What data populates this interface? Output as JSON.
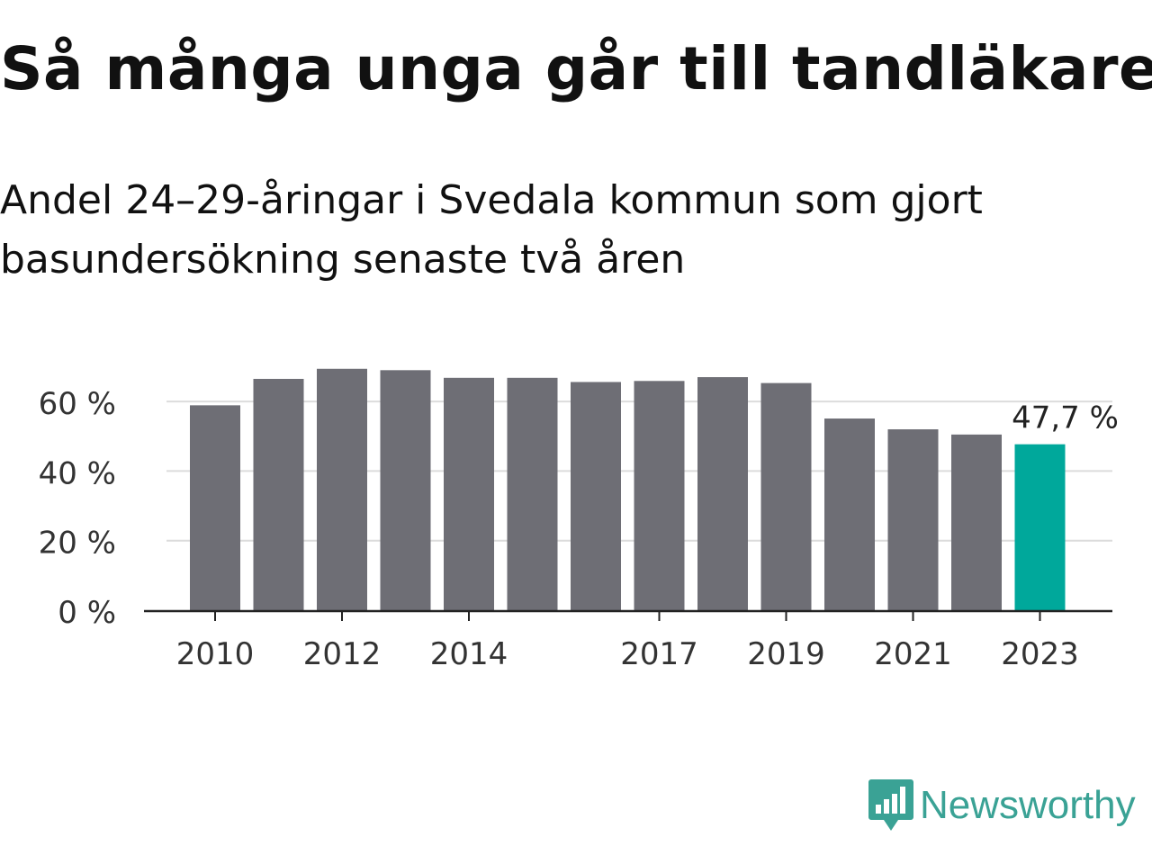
{
  "title": "Så många unga går till tandläkaren",
  "subtitle": "Andel 24–29-åringar i Svedala kommun som gjort basundersökning senaste två åren",
  "chart_data": {
    "type": "bar",
    "categories": [
      "2010",
      "2011",
      "2012",
      "2013",
      "2014",
      "2015",
      "2016",
      "2017",
      "2018",
      "2019",
      "2020",
      "2021",
      "2022",
      "2023"
    ],
    "values": [
      58.9,
      66.5,
      69.4,
      69.0,
      66.8,
      66.8,
      65.6,
      65.9,
      67.0,
      65.3,
      55.1,
      52.0,
      50.5,
      47.7
    ],
    "y_ticks": [
      0,
      20,
      40,
      60
    ],
    "y_tick_labels": [
      "0 %",
      "20 %",
      "40 %",
      "60 %"
    ],
    "x_tick_labels": [
      "2010",
      "2012",
      "2014",
      "2017",
      "2019",
      "2021",
      "2023"
    ],
    "ylim": [
      0,
      70
    ],
    "highlight_label": "47,7 %",
    "highlight_index": 13,
    "colors": {
      "bar": "#6e6e75",
      "highlight": "#00a89b",
      "grid": "#dcdcdc",
      "axis": "#222222"
    },
    "grid": true
  },
  "footer": {
    "logo_text": "Newsworthy",
    "logo_icon": "newsworthy-bar-chart-icon",
    "logo_color": "#3aa295"
  }
}
